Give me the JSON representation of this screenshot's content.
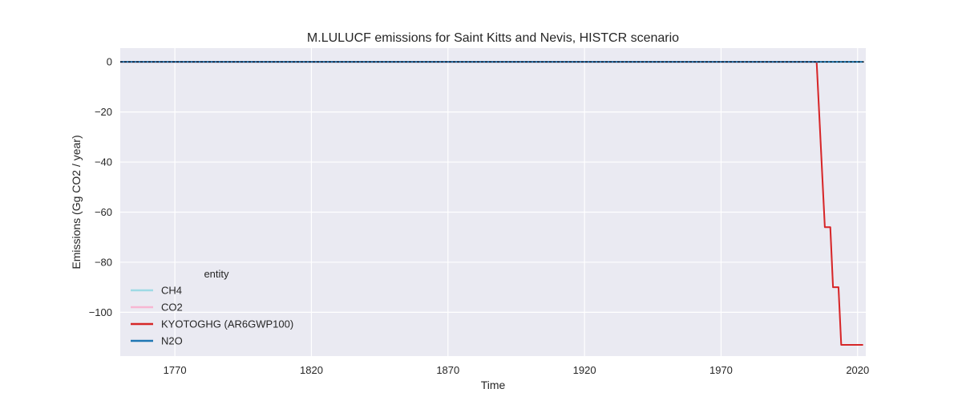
{
  "chart_data": {
    "type": "line",
    "title": "M.LULUCF emissions for Saint Kitts and Nevis, HISTCR scenario",
    "xlabel": "Time",
    "ylabel": "Emissions (Gg CO2 / year)",
    "xlim": [
      1750,
      2023
    ],
    "ylim": [
      -117.5,
      5.5
    ],
    "xticks": [
      1770,
      1820,
      1870,
      1920,
      1970,
      2020
    ],
    "yticks": [
      0,
      -20,
      -40,
      -60,
      -80,
      -100
    ],
    "grid": true,
    "legend": {
      "title": "entity",
      "placement": "lower-left",
      "entries": [
        "CH4",
        "CO2",
        "KYOTOGHG (AR6GWP100)",
        "N2O"
      ]
    },
    "zero_reference_line": {
      "y": 0,
      "style": "dashed",
      "color": "#000000"
    },
    "series": [
      {
        "name": "CH4",
        "color": "#9edae5",
        "x": [
          1750,
          2022
        ],
        "y": [
          0,
          0
        ]
      },
      {
        "name": "CO2",
        "color": "#f7b6d2",
        "x": [
          1750,
          2005,
          2006,
          2007,
          2008,
          2009,
          2010,
          2011,
          2012,
          2013,
          2014,
          2015,
          2016,
          2017,
          2018,
          2019,
          2020,
          2021,
          2022
        ],
        "y": [
          0,
          0,
          -22,
          -44,
          -66,
          -66,
          -66,
          -90,
          -90,
          -90,
          -113,
          -113,
          -113,
          -113,
          -113,
          -113,
          -113,
          -113,
          -113
        ]
      },
      {
        "name": "KYOTOGHG (AR6GWP100)",
        "color": "#d62728",
        "x": [
          1750,
          2005,
          2006,
          2007,
          2008,
          2009,
          2010,
          2011,
          2012,
          2013,
          2014,
          2015,
          2016,
          2017,
          2018,
          2019,
          2020,
          2021,
          2022
        ],
        "y": [
          0,
          0,
          -22,
          -44,
          -66,
          -66,
          -66,
          -90,
          -90,
          -90,
          -113,
          -113,
          -113,
          -113,
          -113,
          -113,
          -113,
          -113,
          -113
        ]
      },
      {
        "name": "N2O",
        "color": "#1f77b4",
        "x": [
          1750,
          2022
        ],
        "y": [
          0,
          0
        ]
      }
    ]
  }
}
